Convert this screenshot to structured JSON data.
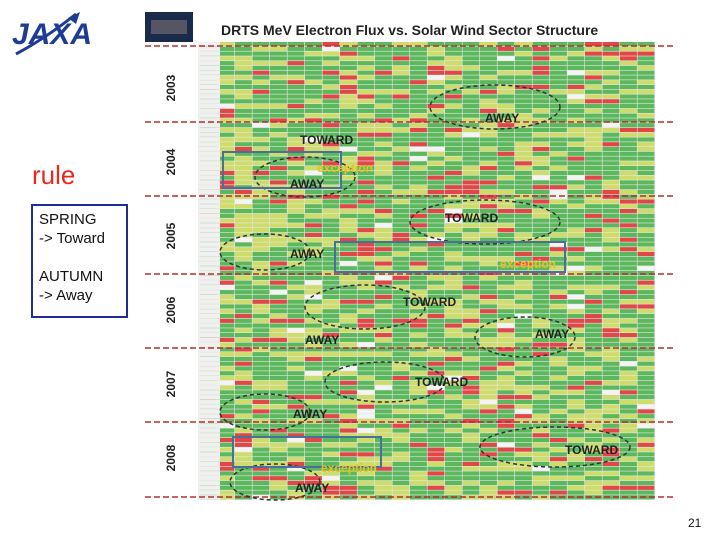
{
  "logo": {
    "text": "JAXA",
    "color": "#1f3c95"
  },
  "rule": {
    "title": "rule",
    "line1": "SPRING",
    "line2": "-> Toward",
    "line3": "AUTUMN",
    "line4": "-> Away"
  },
  "chart_data": {
    "type": "heatmap",
    "title": "DRTS MeV Electron Flux vs. Solar Wind Sector Structure",
    "years": [
      "2003",
      "2004",
      "2005",
      "2006",
      "2007",
      "2008"
    ],
    "annotations": [
      {
        "text": "AWAY",
        "year": "2003"
      },
      {
        "text": "TOWARD",
        "year": "2004"
      },
      {
        "text": "exception",
        "year": "2004"
      },
      {
        "text": "AWAY",
        "year": "2004"
      },
      {
        "text": "TOWARD",
        "year": "2005"
      },
      {
        "text": "AWAY",
        "year": "2005"
      },
      {
        "text": "exception",
        "year": "2005"
      },
      {
        "text": "TOWARD",
        "year": "2006"
      },
      {
        "text": "AWAY",
        "year": "2006"
      },
      {
        "text": "AWAY",
        "year": "2006"
      },
      {
        "text": "TOWARD",
        "year": "2007"
      },
      {
        "text": "AWAY",
        "year": "2007"
      },
      {
        "text": "TOWARD",
        "year": "2008"
      },
      {
        "text": "exception",
        "year": "2008"
      },
      {
        "text": "AWAY",
        "year": "2008"
      }
    ],
    "colors": {
      "low": "#5cb85c",
      "mid": "#cddc6a",
      "high": "#e04848",
      "none": "#f4f4f4",
      "label_toward": "#222222",
      "label_exception": "#e8c020",
      "boundary": "#b03030"
    }
  },
  "page": {
    "number": "21"
  }
}
